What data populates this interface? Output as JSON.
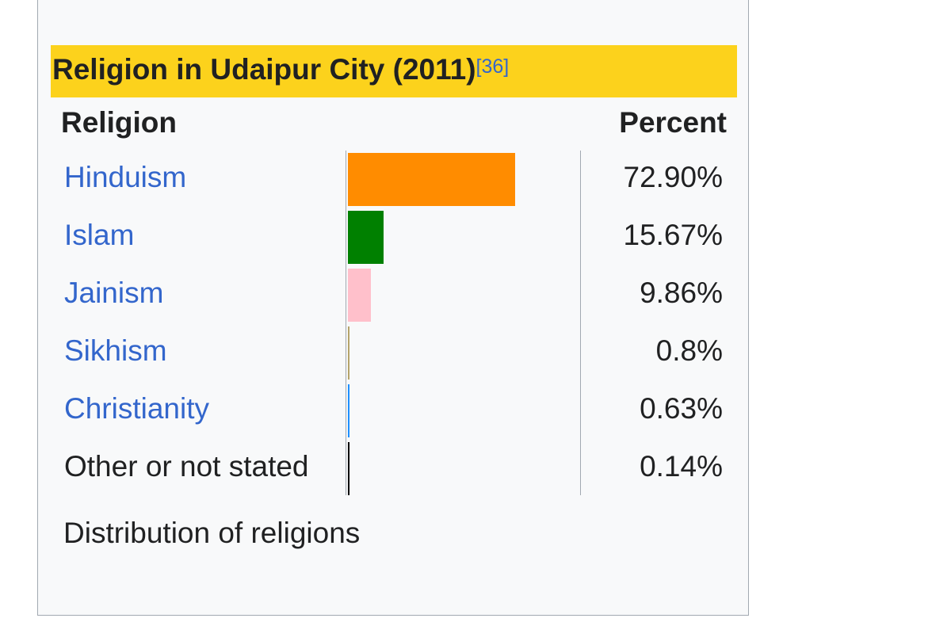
{
  "chart_data": {
    "type": "bar",
    "orientation": "horizontal",
    "title": "Religion in Udaipur City (2011)",
    "title_ref": "[36]",
    "column_headers": {
      "label": "Religion",
      "value": "Percent"
    },
    "rows": [
      {
        "name": "Hinduism",
        "value": 72.9,
        "display": "72.90%",
        "color": "#ff8c00",
        "link": true
      },
      {
        "name": "Islam",
        "value": 15.67,
        "display": "15.67%",
        "color": "#008000",
        "link": true
      },
      {
        "name": "Jainism",
        "value": 9.86,
        "display": "9.86%",
        "color": "#ffc0cb",
        "link": true
      },
      {
        "name": "Sikhism",
        "value": 0.8,
        "display": "0.8%",
        "color": "#b5a36a",
        "link": true
      },
      {
        "name": "Christianity",
        "value": 0.63,
        "display": "0.63%",
        "color": "#1e90ff",
        "link": true
      },
      {
        "name": "Other or not stated",
        "value": 0.14,
        "display": "0.14%",
        "color": "#000000",
        "link": false
      }
    ],
    "xlim": [
      0,
      100
    ],
    "caption": "Distribution of religions"
  },
  "colors": {
    "title_background": "#fcd21c",
    "link": "#3366cc",
    "text": "#202122",
    "box_background": "#f8f9fa",
    "border": "#a2a9b1"
  }
}
